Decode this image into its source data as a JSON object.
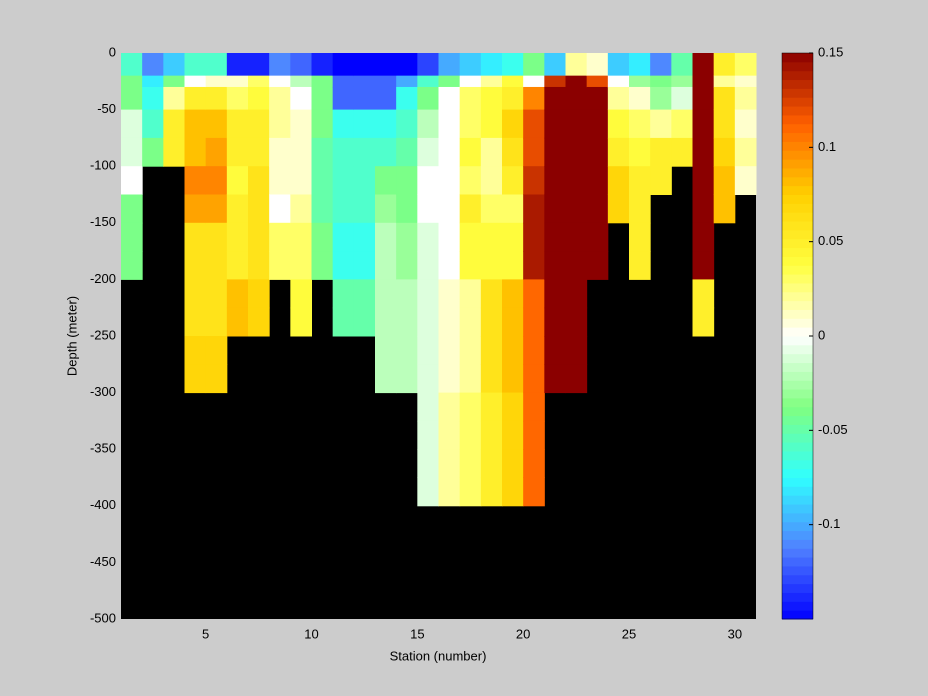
{
  "chart_data": {
    "type": "heatmap",
    "x_label": "Station (number)",
    "y_label": "Depth (meter)",
    "x_edges": [
      1,
      2,
      3,
      4,
      5,
      6,
      7,
      8,
      9,
      10,
      11,
      12,
      13,
      14,
      15,
      16,
      17,
      18,
      19,
      20,
      21,
      22,
      23,
      24,
      25,
      26,
      27,
      28,
      29,
      30,
      31
    ],
    "y_edges": [
      0,
      -20,
      -30,
      -50,
      -75,
      -100,
      -125,
      -150,
      -175,
      -200,
      -225,
      -250,
      -275,
      -300,
      -325,
      -350,
      -375,
      -400
    ],
    "values": [
      [
        -0.06,
        -0.04,
        -0.04,
        -0.01,
        -0.01,
        0.0,
        -0.04,
        -0.04,
        -0.04,
        null,
        null,
        null,
        null,
        null,
        null,
        null,
        null
      ],
      [
        -0.11,
        -0.08,
        -0.07,
        -0.06,
        -0.04,
        null,
        null,
        null,
        null,
        null,
        null,
        null,
        null,
        null,
        null,
        null,
        null
      ],
      [
        -0.09,
        -0.04,
        0.02,
        0.05,
        0.05,
        null,
        null,
        null,
        null,
        null,
        null,
        null,
        null,
        null,
        null,
        null,
        null
      ],
      [
        -0.06,
        0.0,
        0.05,
        0.08,
        0.08,
        0.1,
        0.09,
        0.06,
        0.06,
        0.06,
        0.06,
        0.07,
        0.07,
        null,
        null,
        null,
        null
      ],
      [
        -0.06,
        0.01,
        0.05,
        0.08,
        0.09,
        0.1,
        0.09,
        0.06,
        0.06,
        0.06,
        0.06,
        0.07,
        0.07,
        null,
        null,
        null,
        null
      ],
      [
        -0.14,
        0.01,
        0.03,
        0.05,
        0.05,
        0.04,
        0.05,
        0.05,
        0.05,
        0.08,
        0.08,
        null,
        null,
        null,
        null,
        null,
        null
      ],
      [
        -0.14,
        0.03,
        0.04,
        0.05,
        0.05,
        0.06,
        0.06,
        0.06,
        0.06,
        0.07,
        0.07,
        null,
        null,
        null,
        null,
        null,
        null
      ],
      [
        -0.11,
        0.0,
        0.02,
        0.02,
        0.01,
        0.01,
        0.0,
        0.03,
        0.03,
        null,
        null,
        null,
        null,
        null,
        null,
        null,
        null
      ],
      [
        -0.12,
        -0.02,
        0.0,
        0.01,
        0.01,
        0.01,
        0.02,
        0.03,
        0.03,
        0.04,
        0.04,
        null,
        null,
        null,
        null,
        null,
        null
      ],
      [
        -0.14,
        -0.04,
        -0.04,
        -0.04,
        -0.05,
        -0.05,
        -0.05,
        -0.04,
        -0.04,
        null,
        null,
        null,
        null,
        null,
        null,
        null,
        null
      ],
      [
        -0.15,
        -0.12,
        -0.12,
        -0.07,
        -0.06,
        -0.06,
        -0.06,
        -0.07,
        -0.07,
        -0.05,
        -0.05,
        null,
        null,
        null,
        null,
        null,
        null
      ],
      [
        -0.15,
        -0.12,
        -0.12,
        -0.07,
        -0.06,
        -0.06,
        -0.06,
        -0.07,
        -0.07,
        -0.05,
        -0.05,
        null,
        null,
        null,
        null,
        null,
        null
      ],
      [
        -0.15,
        -0.12,
        -0.12,
        -0.07,
        -0.06,
        -0.04,
        -0.03,
        -0.02,
        -0.02,
        -0.02,
        -0.02,
        -0.02,
        -0.02,
        null,
        null,
        null,
        null
      ],
      [
        -0.15,
        -0.1,
        -0.07,
        -0.06,
        -0.05,
        -0.04,
        -0.04,
        -0.03,
        -0.03,
        -0.02,
        -0.02,
        -0.02,
        -0.02,
        null,
        null,
        null,
        null
      ],
      [
        -0.13,
        -0.06,
        -0.04,
        -0.02,
        -0.01,
        0.0,
        0.0,
        -0.01,
        -0.01,
        -0.01,
        -0.01,
        -0.01,
        -0.01,
        -0.01,
        -0.01,
        -0.01,
        -0.01
      ],
      [
        -0.1,
        -0.04,
        0.0,
        0.0,
        0.0,
        0.0,
        0.0,
        0.0,
        0.0,
        0.01,
        0.01,
        0.01,
        0.01,
        0.02,
        0.02,
        0.02,
        0.02
      ],
      [
        -0.09,
        0.0,
        0.03,
        0.03,
        0.04,
        0.03,
        0.05,
        0.04,
        0.04,
        0.02,
        0.02,
        0.02,
        0.02,
        0.03,
        0.03,
        0.03,
        0.03
      ],
      [
        -0.08,
        0.02,
        0.04,
        0.04,
        0.02,
        0.02,
        0.03,
        0.04,
        0.04,
        0.06,
        0.06,
        0.06,
        0.06,
        0.05,
        0.05,
        0.05,
        0.05
      ],
      [
        -0.07,
        0.04,
        0.05,
        0.07,
        0.06,
        0.05,
        0.03,
        0.04,
        0.04,
        0.08,
        0.08,
        0.08,
        0.08,
        0.07,
        0.07,
        0.07,
        0.07
      ],
      [
        -0.04,
        0.0,
        0.1,
        0.12,
        0.12,
        0.13,
        0.14,
        0.14,
        0.14,
        0.11,
        0.11,
        0.11,
        0.11,
        0.11,
        0.11,
        0.11,
        0.11
      ],
      [
        -0.09,
        0.13,
        0.15,
        0.15,
        0.15,
        0.15,
        0.15,
        0.15,
        0.15,
        0.15,
        0.15,
        0.15,
        0.15,
        null,
        null,
        null,
        null
      ],
      [
        0.02,
        0.15,
        0.15,
        0.15,
        0.15,
        0.15,
        0.15,
        0.15,
        0.15,
        0.15,
        0.15,
        0.15,
        0.15,
        null,
        null,
        null,
        null
      ],
      [
        0.01,
        0.12,
        0.15,
        0.15,
        0.15,
        0.15,
        0.15,
        0.15,
        0.15,
        null,
        null,
        null,
        null,
        null,
        null,
        null,
        null
      ],
      [
        -0.09,
        0.0,
        0.02,
        0.04,
        0.05,
        0.07,
        0.07,
        null,
        null,
        null,
        null,
        null,
        null,
        null,
        null,
        null,
        null
      ],
      [
        -0.08,
        -0.03,
        0.01,
        0.03,
        0.04,
        0.05,
        0.05,
        0.05,
        0.05,
        null,
        null,
        null,
        null,
        null,
        null,
        null,
        null
      ],
      [
        -0.11,
        -0.04,
        -0.03,
        0.02,
        0.05,
        0.05,
        null,
        null,
        null,
        null,
        null,
        null,
        null,
        null,
        null,
        null,
        null
      ],
      [
        -0.05,
        -0.03,
        -0.01,
        0.03,
        0.05,
        null,
        null,
        null,
        null,
        null,
        null,
        null,
        null,
        null,
        null,
        null,
        null
      ],
      [
        0.15,
        0.15,
        0.15,
        0.15,
        0.15,
        0.15,
        0.15,
        0.15,
        0.15,
        0.05,
        0.05,
        null,
        null,
        null,
        null,
        null,
        null
      ],
      [
        0.05,
        0.02,
        0.06,
        0.06,
        0.07,
        0.08,
        0.08,
        null,
        null,
        null,
        null,
        null,
        null,
        null,
        null,
        null,
        null
      ],
      [
        0.03,
        0.01,
        0.02,
        0.01,
        0.02,
        0.01,
        null,
        null,
        null,
        null,
        null,
        null,
        null,
        null,
        null,
        null,
        null
      ]
    ],
    "xlim": [
      1,
      31
    ],
    "xticks": [
      5,
      10,
      15,
      20,
      25,
      30
    ],
    "ylim": [
      -500,
      0
    ],
    "yticks": [
      -500,
      -450,
      -400,
      -350,
      -300,
      -250,
      -200,
      -150,
      -100,
      -50,
      0
    ],
    "clim": [
      -0.15,
      0.15
    ],
    "cticks": [
      -0.1,
      -0.05,
      0,
      0.05,
      0.1,
      0.15
    ],
    "colormap": [
      "#0000ff",
      "#5080ff",
      "#30ffff",
      "#80ff80",
      "#ffffff",
      "#ffff40",
      "#ffd000",
      "#ff6000",
      "#8b0000"
    ],
    "nan_color": "#000000"
  }
}
